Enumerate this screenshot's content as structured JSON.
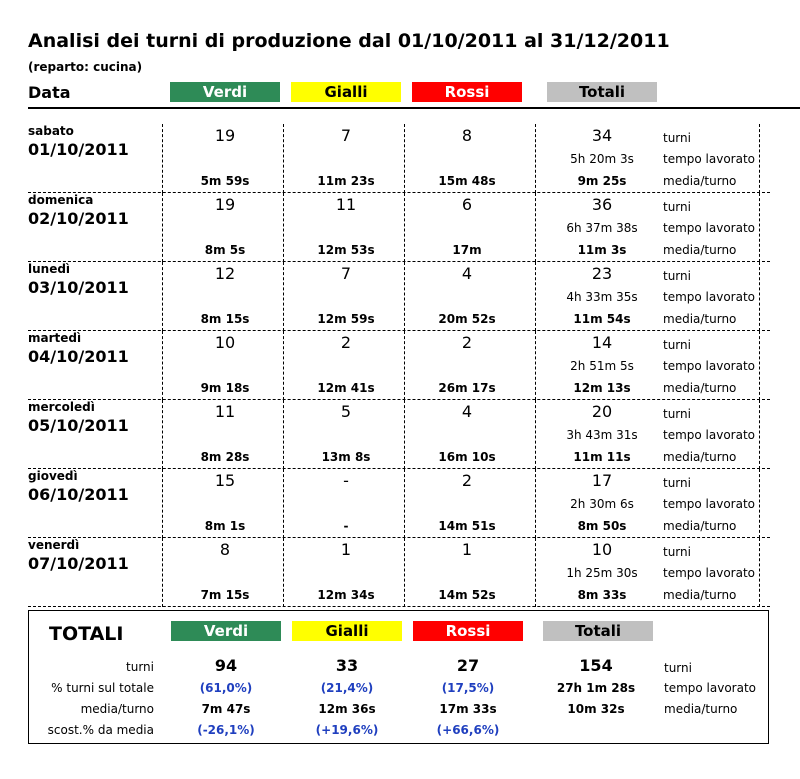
{
  "title": "Analisi dei turni di produzione dal 01/10/2011 al 31/12/2011",
  "subtitle": "(reparto: cucina)",
  "date_header": "Data",
  "categories": {
    "verdi": "Verdi",
    "gialli": "Gialli",
    "rossi": "Rossi",
    "totali": "Totali"
  },
  "colors": {
    "verdi": "#2e8b57",
    "gialli": "#ffff00",
    "rossi": "#ff0000",
    "totali": "#c0c0c0"
  },
  "row_labels": {
    "turni": "turni",
    "tempo": "tempo lavorato",
    "media": "media/turno"
  },
  "days": [
    {
      "day": "sabato",
      "date": "01/10/2011",
      "verdi": "19",
      "verdi_avg": "5m 59s",
      "gialli": "7",
      "gialli_avg": "11m 23s",
      "rossi": "8",
      "rossi_avg": "15m 48s",
      "totali": "34",
      "tempo": "5h 20m 3s",
      "totali_avg": "9m 25s"
    },
    {
      "day": "domenica",
      "date": "02/10/2011",
      "verdi": "19",
      "verdi_avg": "8m 5s",
      "gialli": "11",
      "gialli_avg": "12m 53s",
      "rossi": "6",
      "rossi_avg": "17m",
      "totali": "36",
      "tempo": "6h 37m 38s",
      "totali_avg": "11m 3s"
    },
    {
      "day": "lunedì",
      "date": "03/10/2011",
      "verdi": "12",
      "verdi_avg": "8m 15s",
      "gialli": "7",
      "gialli_avg": "12m 59s",
      "rossi": "4",
      "rossi_avg": "20m 52s",
      "totali": "23",
      "tempo": "4h 33m 35s",
      "totali_avg": "11m 54s"
    },
    {
      "day": "martedì",
      "date": "04/10/2011",
      "verdi": "10",
      "verdi_avg": "9m 18s",
      "gialli": "2",
      "gialli_avg": "12m 41s",
      "rossi": "2",
      "rossi_avg": "26m 17s",
      "totali": "14",
      "tempo": "2h 51m 5s",
      "totali_avg": "12m 13s"
    },
    {
      "day": "mercoledì",
      "date": "05/10/2011",
      "verdi": "11",
      "verdi_avg": "8m 28s",
      "gialli": "5",
      "gialli_avg": "13m 8s",
      "rossi": "4",
      "rossi_avg": "16m 10s",
      "totali": "20",
      "tempo": "3h 43m 31s",
      "totali_avg": "11m 11s"
    },
    {
      "day": "giovedì",
      "date": "06/10/2011",
      "verdi": "15",
      "verdi_avg": "8m 1s",
      "gialli": "-",
      "gialli_avg": "-",
      "rossi": "2",
      "rossi_avg": "14m 51s",
      "totali": "17",
      "tempo": "2h 30m 6s",
      "totali_avg": "8m 50s"
    },
    {
      "day": "venerdì",
      "date": "07/10/2011",
      "verdi": "8",
      "verdi_avg": "7m 15s",
      "gialli": "1",
      "gialli_avg": "12m 34s",
      "rossi": "1",
      "rossi_avg": "14m 52s",
      "totali": "10",
      "tempo": "1h 25m 30s",
      "totali_avg": "8m 33s"
    }
  ],
  "summary": {
    "title": "TOTALI",
    "labels": {
      "turni": "turni",
      "pct": "% turni sul totale",
      "media": "media/turno",
      "scost": "scost.% da media"
    },
    "right_labels": {
      "turni": "turni",
      "tempo": "tempo lavorato",
      "media": "media/turno"
    },
    "verdi": {
      "turni": "94",
      "pct": "(61,0%)",
      "media": "7m 47s",
      "scost": "(-26,1%)"
    },
    "gialli": {
      "turni": "33",
      "pct": "(21,4%)",
      "media": "12m 36s",
      "scost": "(+19,6%)"
    },
    "rossi": {
      "turni": "27",
      "pct": "(17,5%)",
      "media": "17m 33s",
      "scost": "(+66,6%)"
    },
    "totali": {
      "turni": "154",
      "tempo": "27h 1m 28s",
      "media": "10m 32s"
    }
  }
}
